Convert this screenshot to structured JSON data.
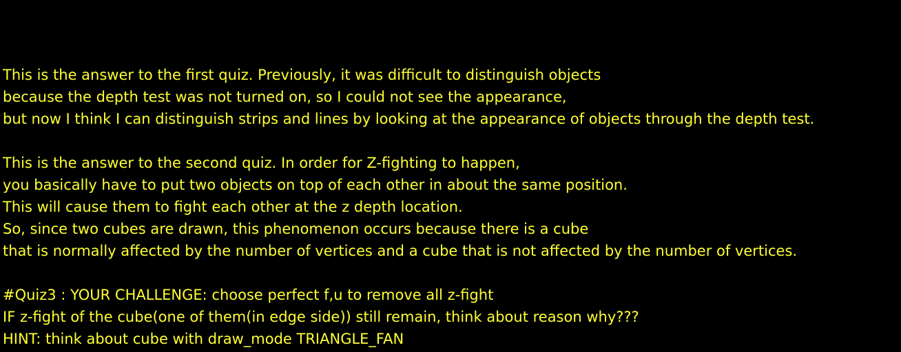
{
  "colors": {
    "background": "#000000",
    "text": "#ffff33"
  },
  "paragraph_1": {
    "line_1": "This is the answer to the first quiz. Previously, it was difficult to distinguish objects",
    "line_2": "because the depth test was not turned on, so I could not see the appearance,",
    "line_3": "but now I think I can distinguish strips and lines by looking at the appearance of objects through the depth test."
  },
  "paragraph_2": {
    "line_1": "This is the answer to the second quiz. In order for Z-fighting to happen,",
    "line_2": "you basically have to put two objects on top of each other in about the same position.",
    "line_3": "This will cause them to fight each other at the z depth location.",
    "line_4": "So, since two cubes are drawn, this phenomenon occurs because there is a cube",
    "line_5": "that is normally affected by the number of vertices and a cube that is not affected by the number of vertices."
  },
  "paragraph_3": {
    "line_1": "#Quiz3 : YOUR CHALLENGE: choose perfect f,u to remove all z-fight",
    "line_2": "IF z-fight of the cube(one of them(in edge side)) still remain, think about reason why???",
    "line_3": "HINT: think about cube with draw_mode TRIANGLE_FAN"
  }
}
